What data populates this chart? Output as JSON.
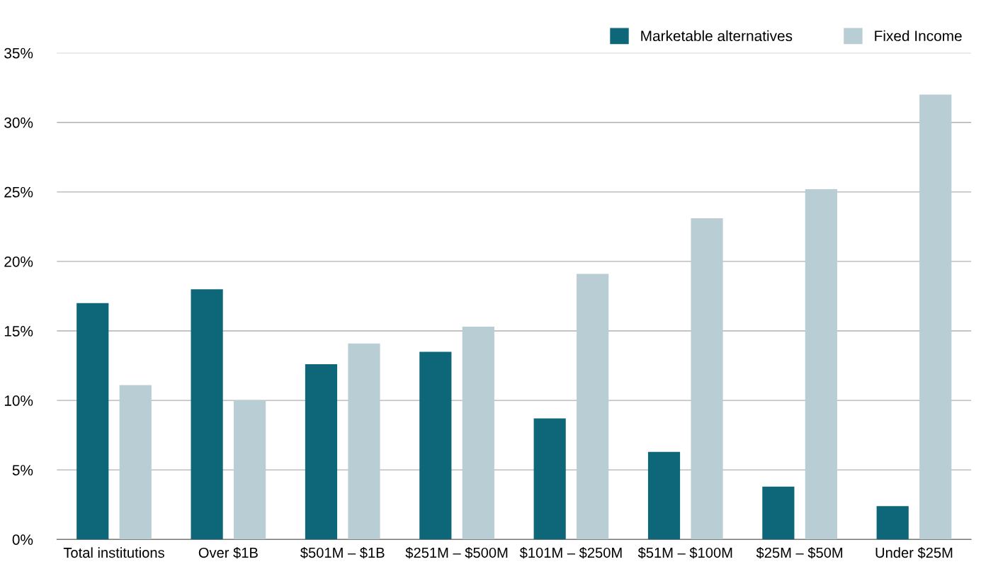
{
  "chart_data": {
    "type": "bar",
    "categories": [
      "Total institutions",
      "Over $1B",
      "$501M – $1B",
      "$251M – $500M",
      "$101M – $250M",
      "$51M – $100M",
      "$25M – $50M",
      "Under $25M"
    ],
    "series": [
      {
        "name": "Marketable alternatives",
        "color": "#0e6679",
        "values": [
          17,
          18,
          12.6,
          13.5,
          8.7,
          6.3,
          3.8,
          2.4
        ]
      },
      {
        "name": "Fixed Income",
        "color": "#b8cdd4",
        "values": [
          11.1,
          10,
          14.1,
          15.3,
          19.1,
          23.1,
          25.2,
          32
        ]
      }
    ],
    "ylim": [
      0,
      35
    ],
    "yticks": [
      {
        "value": 0,
        "label": "0%"
      },
      {
        "value": 5,
        "label": "5%"
      },
      {
        "value": 10,
        "label": "10%"
      },
      {
        "value": 15,
        "label": "15%"
      },
      {
        "value": 20,
        "label": "20%"
      },
      {
        "value": 25,
        "label": "25%"
      },
      {
        "value": 30,
        "label": "30%"
      },
      {
        "value": 35,
        "label": "35%"
      }
    ],
    "grid": "y",
    "legend": "top right"
  }
}
